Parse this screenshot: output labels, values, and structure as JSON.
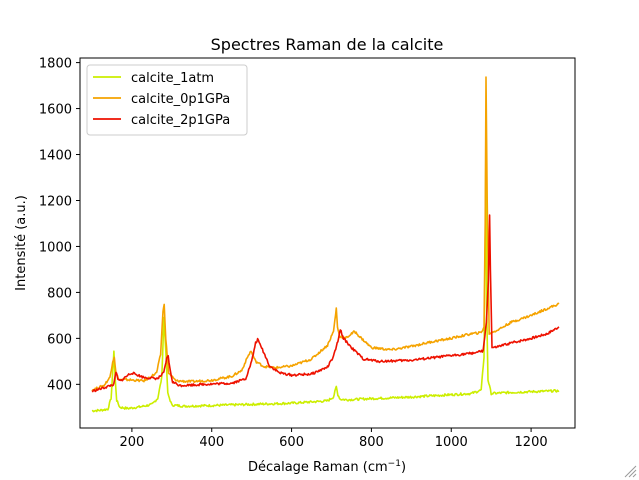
{
  "chart_data": {
    "type": "line",
    "title": "Spectres Raman de la calcite",
    "xlabel_prefix": "Décalage Raman (cm",
    "xlabel_sup": "−1",
    "xlabel_suffix": ")",
    "ylabel": "Intensité (a.u.)",
    "xlim": [
      70,
      1310
    ],
    "ylim": [
      210,
      1820
    ],
    "xticks": [
      200,
      400,
      600,
      800,
      1000,
      1200
    ],
    "yticks": [
      400,
      600,
      800,
      1000,
      1200,
      1400,
      1600,
      1800
    ],
    "grid": false,
    "legend_position": "top-left",
    "series": [
      {
        "name": "calcite_1atm",
        "color": "#ccee00",
        "x": [
          100,
          120,
          140,
          148,
          152,
          155,
          158,
          162,
          170,
          190,
          220,
          250,
          265,
          275,
          280,
          284,
          290,
          300,
          330,
          400,
          500,
          600,
          690,
          705,
          712,
          716,
          722,
          740,
          800,
          900,
          1000,
          1050,
          1075,
          1082,
          1085,
          1087,
          1089,
          1092,
          1100,
          1150,
          1200,
          1270
        ],
        "y": [
          285,
          287,
          292,
          340,
          450,
          545,
          430,
          330,
          300,
          295,
          302,
          312,
          340,
          430,
          690,
          580,
          360,
          310,
          305,
          308,
          313,
          318,
          328,
          345,
          390,
          355,
          335,
          333,
          338,
          345,
          355,
          360,
          375,
          520,
          1000,
          1480,
          700,
          420,
          360,
          365,
          368,
          372
        ]
      },
      {
        "name": "calcite_0p1GPa",
        "color": "#f5a300",
        "x": [
          100,
          130,
          145,
          152,
          156,
          160,
          168,
          190,
          230,
          262,
          272,
          278,
          281,
          285,
          292,
          310,
          350,
          400,
          450,
          475,
          490,
          498,
          510,
          530,
          560,
          600,
          650,
          690,
          705,
          712,
          715,
          720,
          735,
          758,
          775,
          800,
          850,
          900,
          950,
          1000,
          1050,
          1075,
          1082,
          1085,
          1087,
          1090,
          1095,
          1120,
          1150,
          1200,
          1240,
          1270
        ],
        "y": [
          375,
          395,
          430,
          500,
          520,
          450,
          420,
          420,
          415,
          450,
          530,
          720,
          745,
          600,
          450,
          415,
          412,
          418,
          435,
          460,
          520,
          545,
          500,
          478,
          472,
          480,
          510,
          570,
          630,
          730,
          650,
          610,
          600,
          630,
          600,
          560,
          550,
          565,
          585,
          600,
          620,
          625,
          650,
          1100,
          1740,
          1200,
          620,
          640,
          670,
          700,
          730,
          750
        ]
      },
      {
        "name": "calcite_2p1GPa",
        "color": "#ee1100",
        "x": [
          100,
          130,
          155,
          160,
          165,
          172,
          190,
          200,
          230,
          265,
          280,
          287,
          291,
          295,
          302,
          320,
          380,
          450,
          485,
          500,
          510,
          515,
          525,
          545,
          570,
          600,
          650,
          690,
          705,
          718,
          722,
          730,
          750,
          780,
          820,
          900,
          950,
          1000,
          1050,
          1080,
          1088,
          1093,
          1096,
          1098,
          1102,
          1110,
          1150,
          1200,
          1240,
          1270
        ],
        "y": [
          370,
          385,
          400,
          455,
          420,
          415,
          440,
          450,
          430,
          425,
          450,
          510,
          525,
          470,
          410,
          395,
          400,
          405,
          425,
          500,
          580,
          595,
          560,
          480,
          450,
          440,
          445,
          475,
          520,
          600,
          640,
          600,
          560,
          510,
          500,
          505,
          515,
          525,
          535,
          545,
          670,
          850,
          1140,
          900,
          560,
          560,
          580,
          600,
          620,
          650
        ]
      }
    ]
  }
}
